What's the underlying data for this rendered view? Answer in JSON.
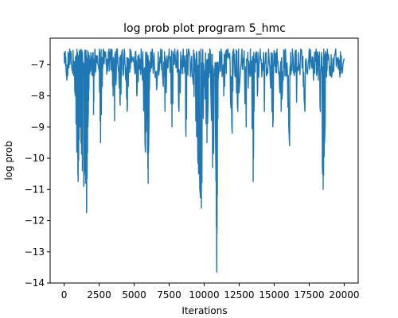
{
  "chart_data": {
    "type": "line",
    "title": "log prob plot program 5_hmc",
    "xlabel": "Iterations",
    "ylabel": "log prob",
    "xlim": [
      -1000,
      21000
    ],
    "ylim": [
      -14,
      -6.15
    ],
    "x_ticks": [
      0,
      2500,
      5000,
      7500,
      10000,
      12500,
      15000,
      17500,
      20000
    ],
    "x_tick_labels": [
      "0",
      "2500",
      "5000",
      "7500",
      "10000",
      "12500",
      "15000",
      "17500",
      "20000"
    ],
    "y_ticks": [
      -14,
      -13,
      -12,
      -11,
      -10,
      -9,
      -8,
      -7
    ],
    "y_tick_labels": [
      "−14",
      "−13",
      "−12",
      "−11",
      "−10",
      "−9",
      "−8",
      "−7"
    ],
    "grid": false,
    "legend": "none",
    "series": [
      {
        "color": "#1f77b4",
        "x": [
          0,
          20000
        ],
        "sampled_points": [
          [
            0,
            -6.6
          ],
          [
            200,
            -7.5
          ],
          [
            400,
            -6.5
          ],
          [
            600,
            -7.2
          ],
          [
            800,
            -8.0
          ],
          [
            900,
            -9.8
          ],
          [
            1000,
            -10.75
          ],
          [
            1100,
            -8.5
          ],
          [
            1200,
            -9.5
          ],
          [
            1300,
            -10.4
          ],
          [
            1400,
            -10.9
          ],
          [
            1500,
            -10.4
          ],
          [
            1600,
            -11.75
          ],
          [
            1700,
            -9.0
          ],
          [
            1800,
            -7.3
          ],
          [
            2000,
            -7.0
          ],
          [
            2100,
            -8.6
          ],
          [
            2200,
            -6.5
          ],
          [
            2500,
            -7.2
          ],
          [
            2600,
            -9.5
          ],
          [
            2800,
            -6.5
          ],
          [
            3000,
            -7.0
          ],
          [
            3200,
            -6.5
          ],
          [
            3400,
            -7.2
          ],
          [
            3600,
            -8.8
          ],
          [
            3800,
            -6.5
          ],
          [
            4000,
            -8.3
          ],
          [
            4300,
            -6.5
          ],
          [
            4500,
            -8.5
          ],
          [
            4700,
            -6.5
          ],
          [
            5000,
            -7.0
          ],
          [
            5200,
            -8.0
          ],
          [
            5500,
            -6.5
          ],
          [
            5800,
            -9.8
          ],
          [
            5900,
            -8.5
          ],
          [
            6000,
            -10.8
          ],
          [
            6100,
            -7.5
          ],
          [
            6300,
            -6.5
          ],
          [
            6600,
            -7.8
          ],
          [
            6900,
            -6.5
          ],
          [
            7200,
            -8.5
          ],
          [
            7500,
            -6.5
          ],
          [
            7700,
            -9.0
          ],
          [
            7900,
            -6.5
          ],
          [
            8200,
            -8.5
          ],
          [
            8500,
            -6.5
          ],
          [
            8700,
            -9.3
          ],
          [
            8900,
            -6.5
          ],
          [
            9200,
            -7.5
          ],
          [
            9400,
            -8.8
          ],
          [
            9600,
            -10.5
          ],
          [
            9800,
            -11.6
          ],
          [
            10000,
            -7.5
          ],
          [
            10200,
            -9.5
          ],
          [
            10400,
            -6.5
          ],
          [
            10600,
            -10.3
          ],
          [
            10800,
            -8.8
          ],
          [
            10900,
            -13.65
          ],
          [
            11000,
            -7.5
          ],
          [
            11200,
            -6.5
          ],
          [
            11400,
            -8.0
          ],
          [
            11700,
            -6.5
          ],
          [
            12000,
            -9.2
          ],
          [
            12100,
            -6.5
          ],
          [
            12400,
            -8.5
          ],
          [
            12700,
            -6.5
          ],
          [
            13000,
            -9.0
          ],
          [
            13300,
            -6.5
          ],
          [
            13500,
            -10.75
          ],
          [
            13600,
            -7.0
          ],
          [
            13800,
            -8.0
          ],
          [
            14000,
            -6.5
          ],
          [
            14300,
            -8.5
          ],
          [
            14600,
            -6.5
          ],
          [
            14900,
            -9.0
          ],
          [
            15200,
            -6.5
          ],
          [
            15500,
            -8.5
          ],
          [
            15800,
            -6.5
          ],
          [
            16100,
            -9.6
          ],
          [
            16300,
            -6.5
          ],
          [
            16600,
            -8.2
          ],
          [
            16900,
            -6.5
          ],
          [
            17200,
            -8.5
          ],
          [
            17500,
            -6.5
          ],
          [
            17800,
            -7.5
          ],
          [
            18000,
            -6.5
          ],
          [
            18300,
            -8.5
          ],
          [
            18500,
            -11.0
          ],
          [
            18600,
            -9.5
          ],
          [
            18800,
            -6.5
          ],
          [
            19100,
            -7.4
          ],
          [
            19400,
            -6.5
          ],
          [
            19700,
            -7.4
          ],
          [
            20000,
            -6.8
          ]
        ]
      }
    ]
  }
}
